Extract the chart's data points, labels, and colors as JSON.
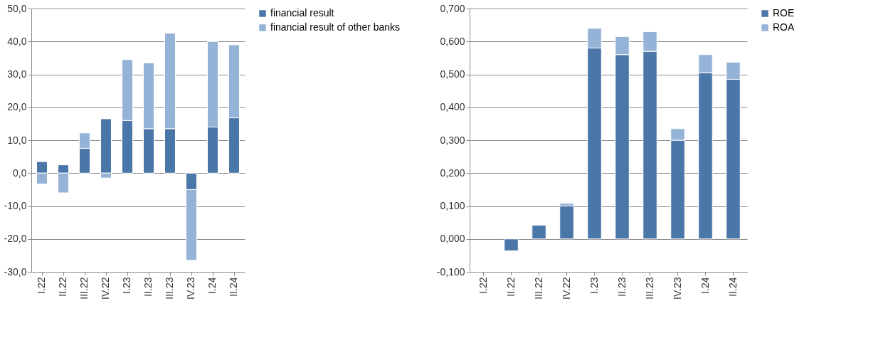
{
  "chart_data": [
    {
      "type": "bar",
      "stacked": true,
      "categories": [
        "I.22",
        "II.22",
        "III.22",
        "IV.22",
        "I.23",
        "II.23",
        "III.23",
        "IV.23",
        "I.24",
        "II.24"
      ],
      "series": [
        {
          "name": "financial result",
          "color": "#4a76a8",
          "values": [
            3.5,
            2.5,
            7.5,
            16.5,
            16,
            13.5,
            13.5,
            -5,
            14,
            16.8
          ]
        },
        {
          "name": "financial result of other banks",
          "color": "#95b3d7",
          "values": [
            -3.3,
            -6,
            4.7,
            -1.5,
            18.5,
            20,
            29,
            -21.5,
            26,
            22.2
          ]
        }
      ],
      "ylim": [
        -30,
        50
      ],
      "yticks": [
        {
          "value": -30,
          "label": "-30,0"
        },
        {
          "value": -20,
          "label": "-20,0"
        },
        {
          "value": -10,
          "label": "-10,0"
        },
        {
          "value": 0,
          "label": "0,0"
        },
        {
          "value": 10,
          "label": "10,0"
        },
        {
          "value": 20,
          "label": "20,0"
        },
        {
          "value": 30,
          "label": "30,0"
        },
        {
          "value": 40,
          "label": "40,0"
        },
        {
          "value": 50,
          "label": "50,0"
        }
      ],
      "grid": "y",
      "legend": "right"
    },
    {
      "type": "bar",
      "stacked": true,
      "categories": [
        "I.22",
        "II.22",
        "III.22",
        "IV.22",
        "I.23",
        "II.23",
        "III.23",
        "IV.23",
        "I.24",
        "II.24"
      ],
      "series": [
        {
          "name": "ROE",
          "color": "#4a76a8",
          "values": [
            null,
            -0.036,
            0.042,
            0.1,
            0.58,
            0.56,
            0.57,
            0.3,
            0.505,
            0.485
          ]
        },
        {
          "name": "ROA",
          "color": "#95b3d7",
          "values": [
            null,
            null,
            null,
            0.008,
            0.06,
            0.055,
            0.06,
            0.035,
            0.055,
            0.052
          ]
        }
      ],
      "ylim": [
        -0.1,
        0.7
      ],
      "yticks": [
        {
          "value": -0.1,
          "label": "-0,100"
        },
        {
          "value": 0,
          "label": "0,000"
        },
        {
          "value": 0.1,
          "label": "0,100"
        },
        {
          "value": 0.2,
          "label": "0,200"
        },
        {
          "value": 0.3,
          "label": "0,300"
        },
        {
          "value": 0.4,
          "label": "0,400"
        },
        {
          "value": 0.5,
          "label": "0,500"
        },
        {
          "value": 0.6,
          "label": "0,600"
        },
        {
          "value": 0.7,
          "label": "0,700"
        }
      ],
      "grid": "y",
      "legend": "right"
    }
  ]
}
